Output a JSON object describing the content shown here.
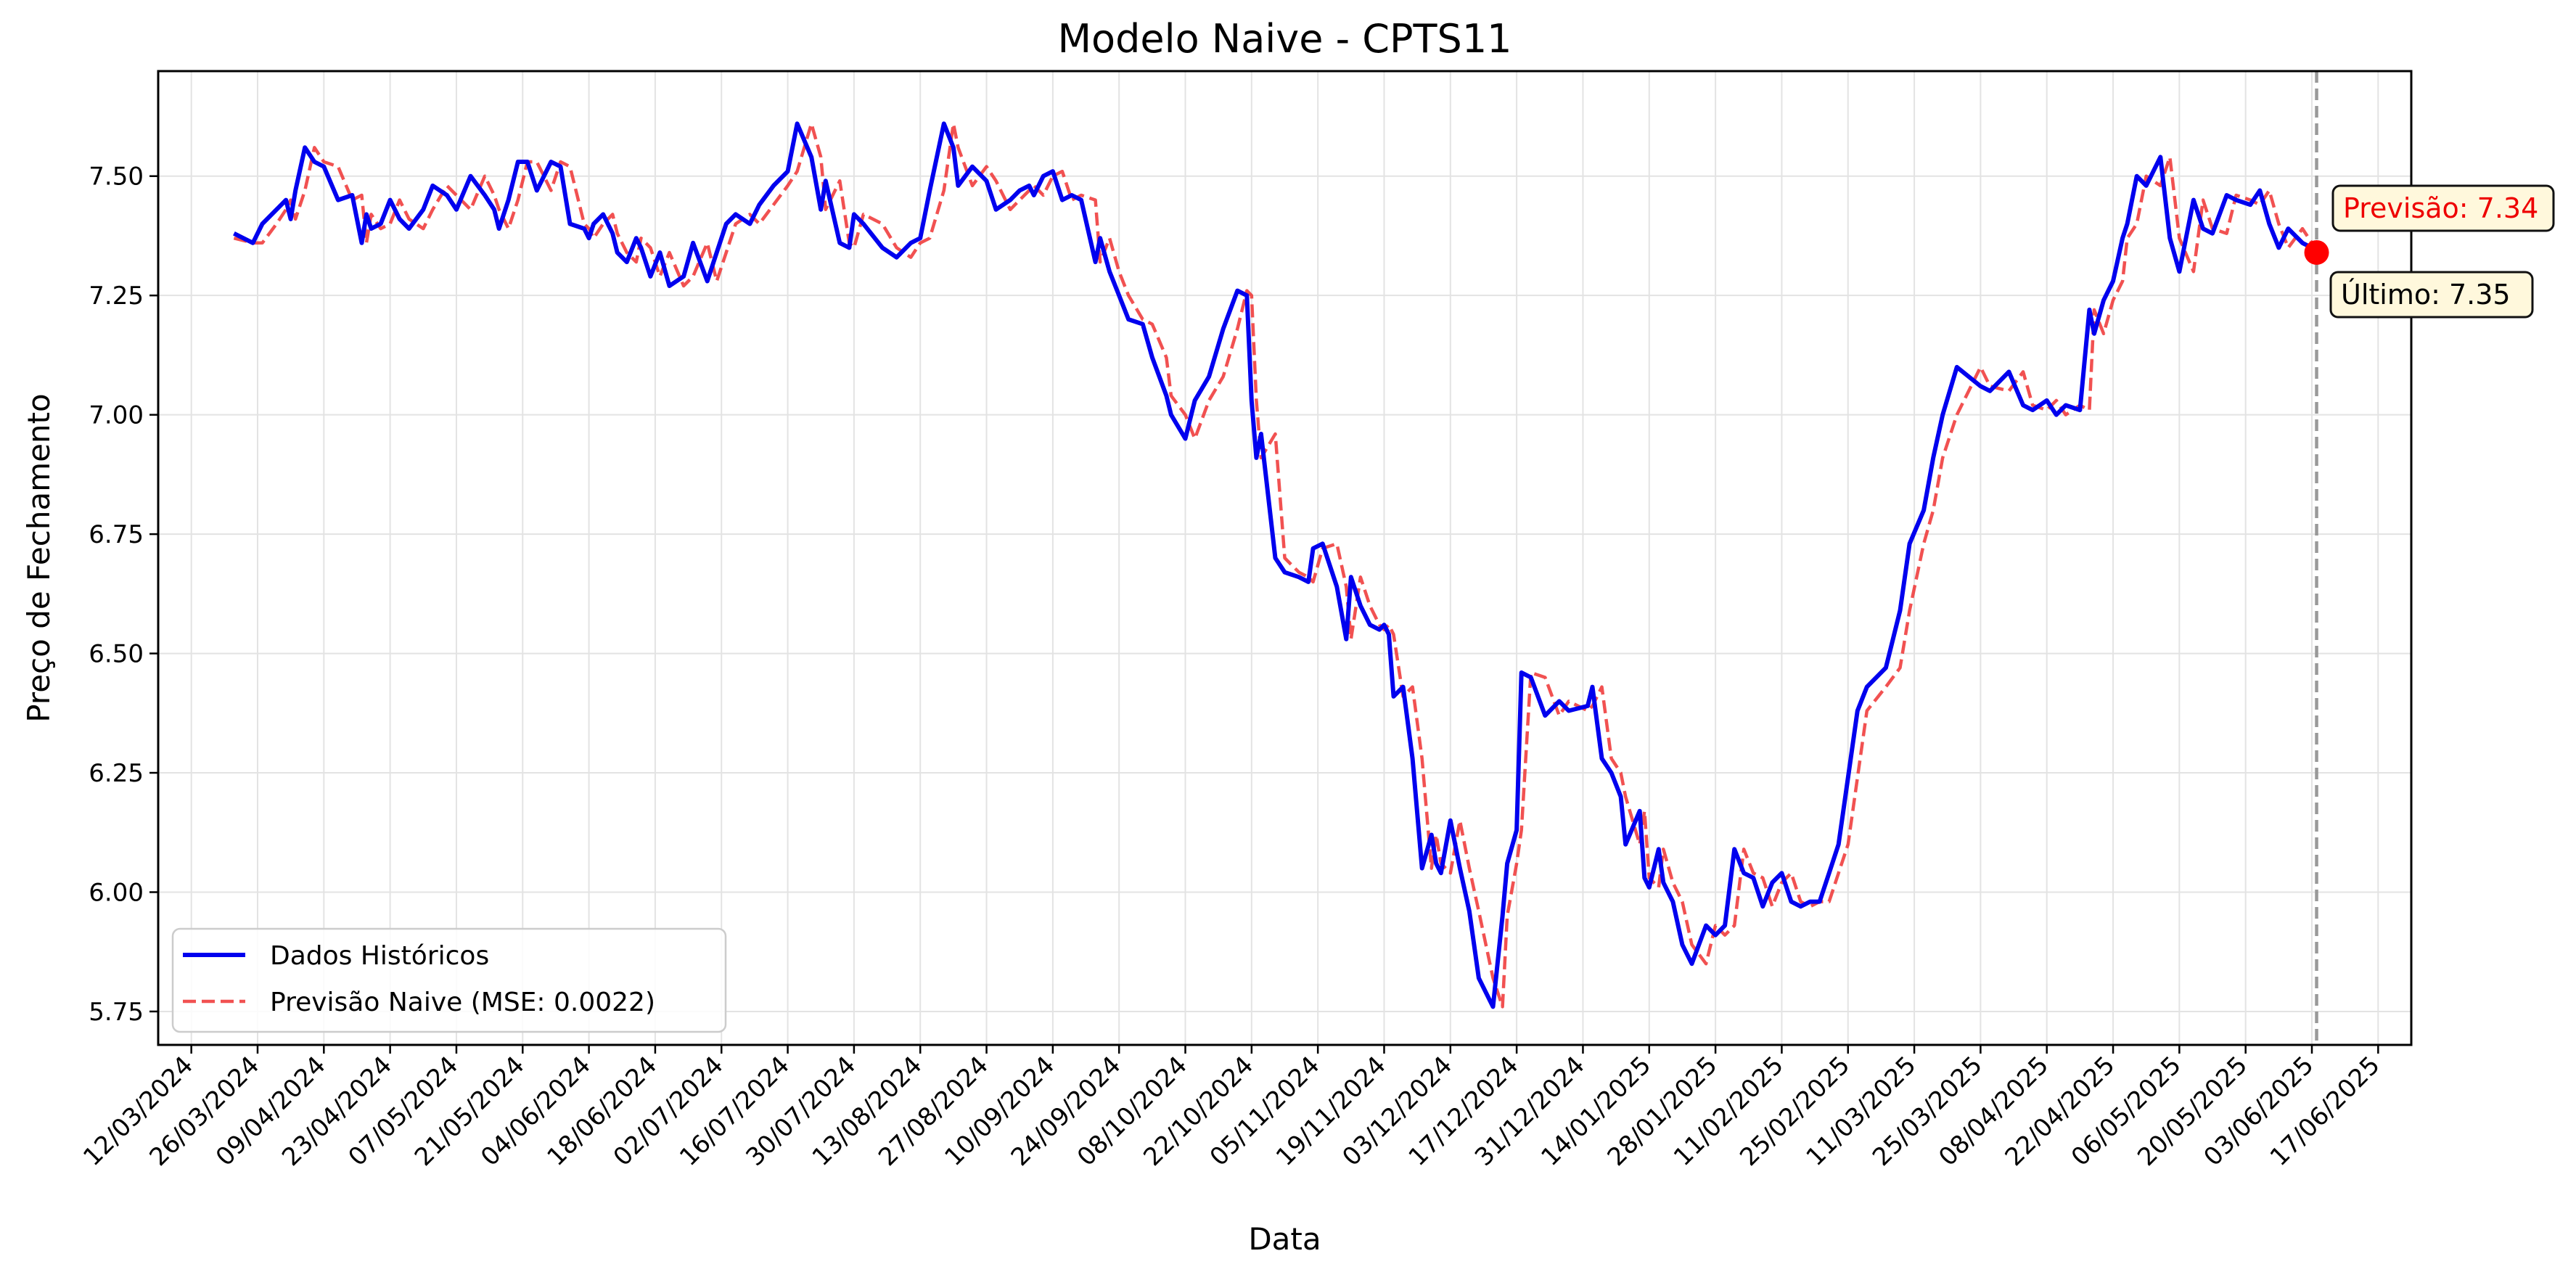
{
  "chart_data": {
    "type": "line",
    "title": "Modelo Naive - CPTS11",
    "xlabel": "Data",
    "ylabel": "Preço de Fechamento",
    "ylim": [
      5.68,
      7.72
    ],
    "xlim": [
      "2024-03-05",
      "2025-06-24"
    ],
    "grid": true,
    "legend_position": "lower-left",
    "y_ticks": [
      5.75,
      6.0,
      6.25,
      6.5,
      6.75,
      7.0,
      7.25,
      7.5
    ],
    "y_tick_labels": [
      "5.75",
      "6.00",
      "6.25",
      "6.50",
      "6.75",
      "7.00",
      "7.25",
      "7.50"
    ],
    "x_ticks": [
      "2024-03-12",
      "2024-03-26",
      "2024-04-09",
      "2024-04-23",
      "2024-05-07",
      "2024-05-21",
      "2024-06-04",
      "2024-06-18",
      "2024-07-02",
      "2024-07-16",
      "2024-07-30",
      "2024-08-13",
      "2024-08-27",
      "2024-09-10",
      "2024-09-24",
      "2024-10-08",
      "2024-10-22",
      "2024-11-05",
      "2024-11-19",
      "2024-12-03",
      "2024-12-17",
      "2024-12-31",
      "2025-01-14",
      "2025-01-28",
      "2025-02-11",
      "2025-02-25",
      "2025-03-11",
      "2025-03-25",
      "2025-04-08",
      "2025-04-22",
      "2025-05-06",
      "2025-05-20",
      "2025-06-03",
      "2025-06-17"
    ],
    "x_tick_labels": [
      "12/03/2024",
      "26/03/2024",
      "09/04/2024",
      "23/04/2024",
      "07/05/2024",
      "21/05/2024",
      "04/06/2024",
      "18/06/2024",
      "02/07/2024",
      "16/07/2024",
      "30/07/2024",
      "13/08/2024",
      "27/08/2024",
      "10/09/2024",
      "24/09/2024",
      "08/10/2024",
      "22/10/2024",
      "05/11/2024",
      "19/11/2024",
      "03/12/2024",
      "17/12/2024",
      "31/12/2024",
      "14/01/2025",
      "28/01/2025",
      "11/02/2025",
      "25/02/2025",
      "11/03/2025",
      "25/03/2025",
      "08/04/2025",
      "22/04/2025",
      "06/05/2025",
      "20/05/2025",
      "03/06/2025",
      "17/06/2025"
    ],
    "series": [
      {
        "name": "Dados Históricos",
        "color": "#0000ee",
        "style": "solid",
        "x": [
          "2024-03-21",
          "2024-03-25",
          "2024-03-27",
          "2024-03-30",
          "2024-04-01",
          "2024-04-02",
          "2024-04-03",
          "2024-04-05",
          "2024-04-07",
          "2024-04-09",
          "2024-04-12",
          "2024-04-15",
          "2024-04-17",
          "2024-04-18",
          "2024-04-19",
          "2024-04-21",
          "2024-04-23",
          "2024-04-25",
          "2024-04-27",
          "2024-04-30",
          "2024-05-02",
          "2024-05-05",
          "2024-05-07",
          "2024-05-10",
          "2024-05-13",
          "2024-05-15",
          "2024-05-16",
          "2024-05-18",
          "2024-05-20",
          "2024-05-22",
          "2024-05-24",
          "2024-05-27",
          "2024-05-29",
          "2024-05-31",
          "2024-06-03",
          "2024-06-04",
          "2024-06-05",
          "2024-06-07",
          "2024-06-09",
          "2024-06-10",
          "2024-06-12",
          "2024-06-14",
          "2024-06-15",
          "2024-06-17",
          "2024-06-19",
          "2024-06-21",
          "2024-06-24",
          "2024-06-26",
          "2024-06-29",
          "2024-07-01",
          "2024-07-03",
          "2024-07-05",
          "2024-07-08",
          "2024-07-10",
          "2024-07-13",
          "2024-07-16",
          "2024-07-18",
          "2024-07-21",
          "2024-07-23",
          "2024-07-24",
          "2024-07-27",
          "2024-07-29",
          "2024-07-30",
          "2024-08-01",
          "2024-08-05",
          "2024-08-08",
          "2024-08-11",
          "2024-08-13",
          "2024-08-15",
          "2024-08-18",
          "2024-08-20",
          "2024-08-21",
          "2024-08-24",
          "2024-08-27",
          "2024-08-29",
          "2024-09-01",
          "2024-09-03",
          "2024-09-05",
          "2024-09-06",
          "2024-09-08",
          "2024-09-10",
          "2024-09-12",
          "2024-09-14",
          "2024-09-16",
          "2024-09-19",
          "2024-09-20",
          "2024-09-22",
          "2024-09-24",
          "2024-09-26",
          "2024-09-29",
          "2024-10-01",
          "2024-10-04",
          "2024-10-05",
          "2024-10-08",
          "2024-10-10",
          "2024-10-13",
          "2024-10-16",
          "2024-10-19",
          "2024-10-21",
          "2024-10-22",
          "2024-10-23",
          "2024-10-24",
          "2024-10-27",
          "2024-10-29",
          "2024-11-01",
          "2024-11-03",
          "2024-11-04",
          "2024-11-06",
          "2024-11-09",
          "2024-11-11",
          "2024-11-12",
          "2024-11-14",
          "2024-11-16",
          "2024-11-18",
          "2024-11-19",
          "2024-11-20",
          "2024-11-21",
          "2024-11-23",
          "2024-11-25",
          "2024-11-27",
          "2024-11-29",
          "2024-11-30",
          "2024-12-01",
          "2024-12-03",
          "2024-12-05",
          "2024-12-07",
          "2024-12-09",
          "2024-12-12",
          "2024-12-14",
          "2024-12-15",
          "2024-12-17",
          "2024-12-18",
          "2024-12-20",
          "2024-12-23",
          "2024-12-26",
          "2024-12-28",
          "2025-01-01",
          "2025-01-02",
          "2025-01-04",
          "2025-01-06",
          "2025-01-08",
          "2025-01-09",
          "2025-01-12",
          "2025-01-13",
          "2025-01-14",
          "2025-01-16",
          "2025-01-17",
          "2025-01-19",
          "2025-01-21",
          "2025-01-23",
          "2025-01-26",
          "2025-01-28",
          "2025-01-30",
          "2025-02-01",
          "2025-02-03",
          "2025-02-05",
          "2025-02-07",
          "2025-02-09",
          "2025-02-11",
          "2025-02-13",
          "2025-02-15",
          "2025-02-17",
          "2025-02-19",
          "2025-02-21",
          "2025-02-23",
          "2025-02-25",
          "2025-02-27",
          "2025-03-01",
          "2025-03-05",
          "2025-03-08",
          "2025-03-10",
          "2025-03-13",
          "2025-03-15",
          "2025-03-17",
          "2025-03-20",
          "2025-03-25",
          "2025-03-27",
          "2025-03-31",
          "2025-04-03",
          "2025-04-05",
          "2025-04-08",
          "2025-04-10",
          "2025-04-12",
          "2025-04-15",
          "2025-04-17",
          "2025-04-18",
          "2025-04-20",
          "2025-04-22",
          "2025-04-24",
          "2025-04-25",
          "2025-04-27",
          "2025-04-29",
          "2025-05-02",
          "2025-05-04",
          "2025-05-06",
          "2025-05-09",
          "2025-05-11",
          "2025-05-13",
          "2025-05-16",
          "2025-05-18",
          "2025-05-21",
          "2025-05-23",
          "2025-05-25",
          "2025-05-27",
          "2025-05-29",
          "2025-06-01",
          "2025-06-03"
        ],
        "y": [
          7.38,
          7.36,
          7.4,
          7.43,
          7.45,
          7.41,
          7.47,
          7.56,
          7.53,
          7.52,
          7.45,
          7.46,
          7.36,
          7.42,
          7.39,
          7.4,
          7.45,
          7.41,
          7.39,
          7.43,
          7.48,
          7.46,
          7.43,
          7.5,
          7.46,
          7.43,
          7.39,
          7.45,
          7.53,
          7.53,
          7.47,
          7.53,
          7.52,
          7.4,
          7.39,
          7.37,
          7.4,
          7.42,
          7.38,
          7.34,
          7.32,
          7.37,
          7.35,
          7.29,
          7.34,
          7.27,
          7.29,
          7.36,
          7.28,
          7.34,
          7.4,
          7.42,
          7.4,
          7.44,
          7.48,
          7.51,
          7.61,
          7.54,
          7.43,
          7.49,
          7.36,
          7.35,
          7.42,
          7.4,
          7.35,
          7.33,
          7.36,
          7.37,
          7.47,
          7.61,
          7.56,
          7.48,
          7.52,
          7.49,
          7.43,
          7.45,
          7.47,
          7.48,
          7.46,
          7.5,
          7.51,
          7.45,
          7.46,
          7.45,
          7.32,
          7.37,
          7.3,
          7.25,
          7.2,
          7.19,
          7.12,
          7.04,
          7.0,
          6.95,
          7.03,
          7.08,
          7.18,
          7.26,
          7.25,
          7.03,
          6.91,
          6.96,
          6.7,
          6.67,
          6.66,
          6.65,
          6.72,
          6.73,
          6.64,
          6.53,
          6.66,
          6.6,
          6.56,
          6.55,
          6.56,
          6.54,
          6.41,
          6.43,
          6.28,
          6.05,
          6.12,
          6.06,
          6.04,
          6.15,
          6.05,
          5.96,
          5.82,
          5.76,
          5.95,
          6.06,
          6.13,
          6.46,
          6.45,
          6.37,
          6.4,
          6.38,
          6.39,
          6.43,
          6.28,
          6.25,
          6.2,
          6.1,
          6.17,
          6.03,
          6.01,
          6.09,
          6.02,
          5.98,
          5.89,
          5.85,
          5.93,
          5.91,
          5.93,
          6.09,
          6.04,
          6.03,
          5.97,
          6.02,
          6.04,
          5.98,
          5.97,
          5.98,
          5.98,
          6.04,
          6.1,
          6.24,
          6.38,
          6.43,
          6.47,
          6.59,
          6.73,
          6.8,
          6.91,
          7.0,
          7.1,
          7.06,
          7.05,
          7.09,
          7.02,
          7.01,
          7.03,
          7.0,
          7.02,
          7.01,
          7.22,
          7.17,
          7.24,
          7.28,
          7.37,
          7.4,
          7.5,
          7.48,
          7.54,
          7.37,
          7.3,
          7.45,
          7.39,
          7.38,
          7.46,
          7.45,
          7.44,
          7.47,
          7.4,
          7.35,
          7.39,
          7.36,
          7.35
        ]
      },
      {
        "name": "Previsão Naive (MSE: 0.0022)",
        "color": "#ee3333",
        "style": "dashed",
        "x": [
          "2024-03-21",
          "2024-03-25",
          "2024-03-27",
          "2024-03-30",
          "2024-04-01",
          "2024-04-02",
          "2024-04-03",
          "2024-04-05",
          "2024-04-07",
          "2024-04-09",
          "2024-04-12",
          "2024-04-15",
          "2024-04-17",
          "2024-04-18",
          "2024-04-19",
          "2024-04-21",
          "2024-04-23",
          "2024-04-25",
          "2024-04-27",
          "2024-04-30",
          "2024-05-02",
          "2024-05-05",
          "2024-05-07",
          "2024-05-10",
          "2024-05-13",
          "2024-05-15",
          "2024-05-16",
          "2024-05-18",
          "2024-05-20",
          "2024-05-22",
          "2024-05-24",
          "2024-05-27",
          "2024-05-29",
          "2024-05-31",
          "2024-06-03",
          "2024-06-04",
          "2024-06-05",
          "2024-06-07",
          "2024-06-09",
          "2024-06-10",
          "2024-06-12",
          "2024-06-14",
          "2024-06-15",
          "2024-06-17",
          "2024-06-19",
          "2024-06-21",
          "2024-06-24",
          "2024-06-26",
          "2024-06-29",
          "2024-07-01",
          "2024-07-03",
          "2024-07-05",
          "2024-07-08",
          "2024-07-10",
          "2024-07-13",
          "2024-07-16",
          "2024-07-18",
          "2024-07-21",
          "2024-07-23",
          "2024-07-24",
          "2024-07-27",
          "2024-07-29",
          "2024-07-30",
          "2024-08-01",
          "2024-08-05",
          "2024-08-08",
          "2024-08-11",
          "2024-08-13",
          "2024-08-15",
          "2024-08-18",
          "2024-08-20",
          "2024-08-21",
          "2024-08-24",
          "2024-08-27",
          "2024-08-29",
          "2024-09-01",
          "2024-09-03",
          "2024-09-05",
          "2024-09-06",
          "2024-09-08",
          "2024-09-10",
          "2024-09-12",
          "2024-09-14",
          "2024-09-16",
          "2024-09-19",
          "2024-09-20",
          "2024-09-22",
          "2024-09-24",
          "2024-09-26",
          "2024-09-29",
          "2024-10-01",
          "2024-10-04",
          "2024-10-05",
          "2024-10-08",
          "2024-10-10",
          "2024-10-13",
          "2024-10-16",
          "2024-10-19",
          "2024-10-21",
          "2024-10-22",
          "2024-10-23",
          "2024-10-24",
          "2024-10-27",
          "2024-10-29",
          "2024-11-01",
          "2024-11-03",
          "2024-11-04",
          "2024-11-06",
          "2024-11-09",
          "2024-11-11",
          "2024-11-12",
          "2024-11-14",
          "2024-11-16",
          "2024-11-18",
          "2024-11-19",
          "2024-11-20",
          "2024-11-21",
          "2024-11-23",
          "2024-11-25",
          "2024-11-27",
          "2024-11-29",
          "2024-11-30",
          "2024-12-01",
          "2024-12-03",
          "2024-12-05",
          "2024-12-07",
          "2024-12-09",
          "2024-12-12",
          "2024-12-14",
          "2024-12-15",
          "2024-12-17",
          "2024-12-18",
          "2024-12-20",
          "2024-12-23",
          "2024-12-26",
          "2024-12-28",
          "2025-01-01",
          "2025-01-02",
          "2025-01-04",
          "2025-01-06",
          "2025-01-08",
          "2025-01-09",
          "2025-01-12",
          "2025-01-13",
          "2025-01-14",
          "2025-01-16",
          "2025-01-17",
          "2025-01-19",
          "2025-01-21",
          "2025-01-23",
          "2025-01-26",
          "2025-01-28",
          "2025-01-30",
          "2025-02-01",
          "2025-02-03",
          "2025-02-05",
          "2025-02-07",
          "2025-02-09",
          "2025-02-11",
          "2025-02-13",
          "2025-02-15",
          "2025-02-17",
          "2025-02-19",
          "2025-02-21",
          "2025-02-23",
          "2025-02-25",
          "2025-02-27",
          "2025-03-01",
          "2025-03-05",
          "2025-03-08",
          "2025-03-10",
          "2025-03-13",
          "2025-03-15",
          "2025-03-17",
          "2025-03-20",
          "2025-03-25",
          "2025-03-27",
          "2025-03-31",
          "2025-04-03",
          "2025-04-05",
          "2025-04-08",
          "2025-04-10",
          "2025-04-12",
          "2025-04-15",
          "2025-04-17",
          "2025-04-18",
          "2025-04-20",
          "2025-04-22",
          "2025-04-24",
          "2025-04-25",
          "2025-04-27",
          "2025-04-29",
          "2025-05-02",
          "2025-05-04",
          "2025-05-06",
          "2025-05-09",
          "2025-05-11",
          "2025-05-13",
          "2025-05-16",
          "2025-05-18",
          "2025-05-21",
          "2025-05-23",
          "2025-05-25",
          "2025-05-27",
          "2025-05-29",
          "2025-06-01",
          "2025-06-03"
        ],
        "y": [
          7.37,
          7.36,
          7.36,
          7.4,
          7.43,
          7.45,
          7.41,
          7.47,
          7.56,
          7.53,
          7.52,
          7.45,
          7.46,
          7.36,
          7.42,
          7.39,
          7.4,
          7.45,
          7.41,
          7.39,
          7.43,
          7.48,
          7.46,
          7.43,
          7.5,
          7.46,
          7.43,
          7.39,
          7.45,
          7.53,
          7.53,
          7.47,
          7.53,
          7.52,
          7.4,
          7.39,
          7.37,
          7.4,
          7.42,
          7.38,
          7.34,
          7.32,
          7.37,
          7.35,
          7.29,
          7.34,
          7.27,
          7.29,
          7.36,
          7.28,
          7.34,
          7.4,
          7.42,
          7.4,
          7.44,
          7.48,
          7.51,
          7.61,
          7.54,
          7.43,
          7.49,
          7.36,
          7.35,
          7.42,
          7.4,
          7.35,
          7.33,
          7.36,
          7.37,
          7.47,
          7.61,
          7.56,
          7.48,
          7.52,
          7.49,
          7.43,
          7.45,
          7.47,
          7.48,
          7.46,
          7.5,
          7.51,
          7.45,
          7.46,
          7.45,
          7.32,
          7.37,
          7.3,
          7.25,
          7.2,
          7.19,
          7.12,
          7.04,
          7.0,
          6.95,
          7.03,
          7.08,
          7.18,
          7.26,
          7.25,
          7.03,
          6.91,
          6.96,
          6.7,
          6.67,
          6.66,
          6.65,
          6.72,
          6.73,
          6.64,
          6.53,
          6.66,
          6.6,
          6.56,
          6.55,
          6.56,
          6.54,
          6.41,
          6.43,
          6.28,
          6.05,
          6.12,
          6.06,
          6.04,
          6.15,
          6.05,
          5.96,
          5.82,
          5.76,
          5.95,
          6.06,
          6.13,
          6.46,
          6.45,
          6.37,
          6.4,
          6.38,
          6.39,
          6.43,
          6.28,
          6.25,
          6.2,
          6.1,
          6.17,
          6.03,
          6.01,
          6.09,
          6.02,
          5.98,
          5.89,
          5.85,
          5.93,
          5.91,
          5.93,
          6.09,
          6.04,
          6.03,
          5.97,
          6.02,
          6.04,
          5.98,
          5.97,
          5.98,
          5.98,
          6.04,
          6.1,
          6.24,
          6.38,
          6.43,
          6.47,
          6.59,
          6.73,
          6.8,
          6.91,
          7.0,
          7.1,
          7.06,
          7.05,
          7.09,
          7.02,
          7.01,
          7.03,
          7.0,
          7.02,
          7.01,
          7.22,
          7.17,
          7.24,
          7.28,
          7.37,
          7.4,
          7.5,
          7.48,
          7.54,
          7.37,
          7.3,
          7.45,
          7.39,
          7.38,
          7.46,
          7.45,
          7.44,
          7.47,
          7.4,
          7.35,
          7.39,
          7.36
        ]
      }
    ],
    "forecast_point": {
      "x": "2025-06-04",
      "y": 7.34,
      "color": "#ff0000"
    },
    "vline_x": "2025-06-04",
    "annotations": [
      {
        "label": "Previsão: 7.34",
        "color": "#ee0000",
        "bg": "#fff8dc"
      },
      {
        "label": "Último: 7.35",
        "color": "#000000",
        "bg": "#fff8dc"
      }
    ]
  }
}
